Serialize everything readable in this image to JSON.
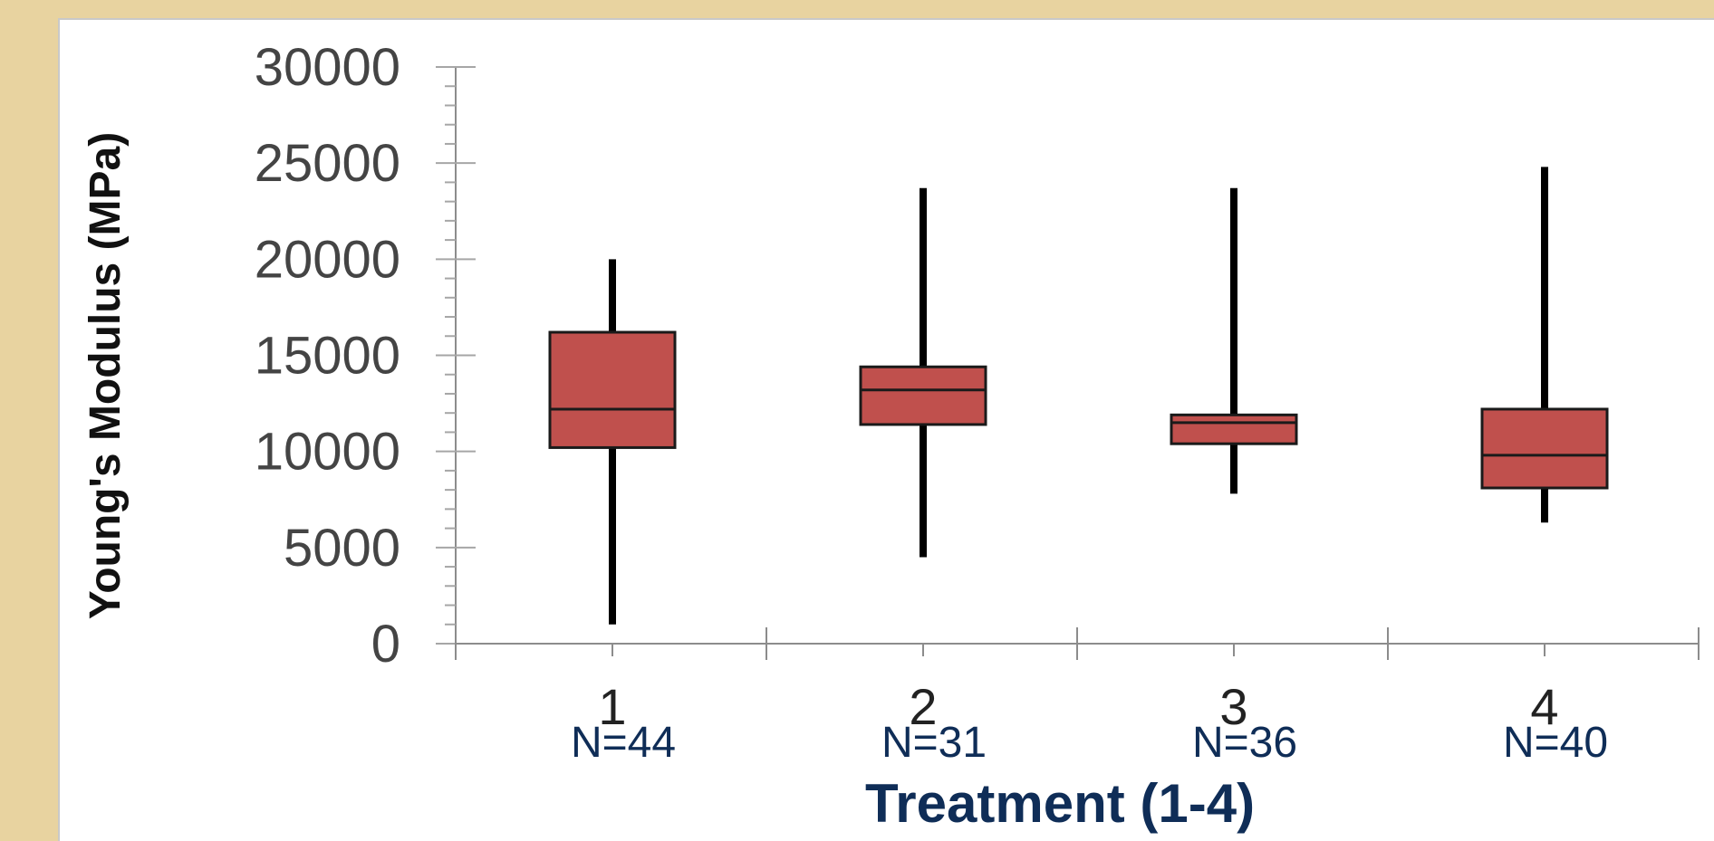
{
  "chart_data": {
    "type": "box",
    "title": "",
    "xlabel": "Treatment (1-4)",
    "ylabel": "Young's Modulus (MPa)",
    "ylim": [
      0,
      30000
    ],
    "yticks": [
      "0",
      "5000",
      "10000",
      "15000",
      "20000",
      "25000",
      "30000"
    ],
    "ytick_values": [
      0,
      5000,
      10000,
      15000,
      20000,
      25000,
      30000
    ],
    "categories": [
      "1",
      "2",
      "3",
      "4"
    ],
    "sample_sizes": [
      "N=44",
      "N=31",
      "N=36",
      "N=40"
    ],
    "boxes": [
      {
        "category": "1",
        "min": 1000,
        "q1": 10200,
        "median": 12200,
        "q3": 16200,
        "max": 20000
      },
      {
        "category": "2",
        "min": 4500,
        "q1": 11400,
        "median": 13200,
        "q3": 14400,
        "max": 23700
      },
      {
        "category": "3",
        "min": 7800,
        "q1": 10400,
        "median": 11500,
        "q3": 11900,
        "max": 23700
      },
      {
        "category": "4",
        "min": 6300,
        "q1": 8100,
        "median": 9800,
        "q3": 12200,
        "max": 24800
      }
    ],
    "box_color": "#c0504d",
    "grid": false,
    "legend": "none"
  }
}
